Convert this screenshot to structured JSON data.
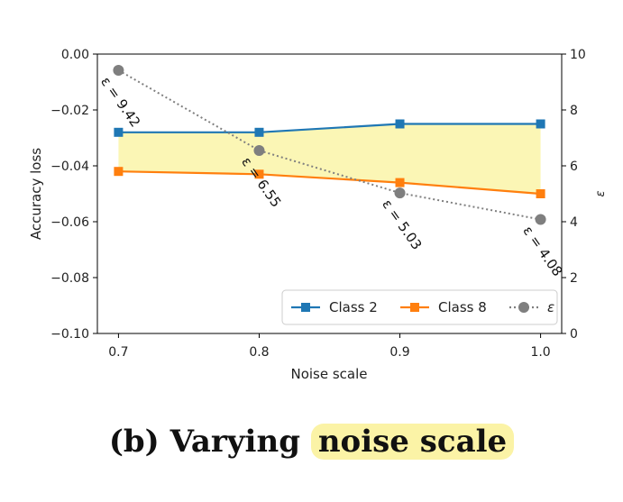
{
  "chart_data": {
    "type": "line",
    "xlabel": "Noise scale",
    "ylabel": "Accuracy loss",
    "y2label": "ε",
    "x": [
      0.7,
      0.8,
      0.9,
      1.0
    ],
    "x_tick_labels": [
      "0.7",
      "0.8",
      "0.9",
      "1.0"
    ],
    "xlim": [
      0.685,
      1.015
    ],
    "ylim": [
      -0.1,
      0.0
    ],
    "y_ticks": [
      0.0,
      -0.02,
      -0.04,
      -0.06,
      -0.08,
      -0.1
    ],
    "y_tick_labels": [
      "0.00",
      "−0.02",
      "−0.04",
      "−0.06",
      "−0.08",
      "−0.10"
    ],
    "y2lim": [
      0,
      10
    ],
    "y2_ticks": [
      0,
      2,
      4,
      6,
      8,
      10
    ],
    "y2_tick_labels": [
      "0",
      "2",
      "4",
      "6",
      "8",
      "10"
    ],
    "series": [
      {
        "name": "Class 2",
        "axis": "left",
        "color": "#1f77b4",
        "marker": "square",
        "values": [
          -0.028,
          -0.028,
          -0.025,
          -0.025
        ]
      },
      {
        "name": "Class 8",
        "axis": "left",
        "color": "#ff7f0e",
        "marker": "square",
        "values": [
          -0.042,
          -0.043,
          -0.046,
          -0.05
        ]
      },
      {
        "name": "ε",
        "axis": "right",
        "color": "#7f7f7f",
        "marker": "circle",
        "linestyle": "dotted",
        "values": [
          9.42,
          6.55,
          5.03,
          4.08
        ]
      }
    ],
    "fill_between": {
      "series": [
        "Class 2",
        "Class 8"
      ],
      "color": "#fbf6b5"
    },
    "annotations": [
      "ε = 9.42",
      "ε = 6.55",
      "ε = 5.03",
      "ε = 4.08"
    ],
    "legend": "lower-right",
    "grid": false
  },
  "caption": {
    "prefix": "(b) Varying ",
    "highlight": "noise scale",
    "highlight_color": "#fbf3a6"
  }
}
